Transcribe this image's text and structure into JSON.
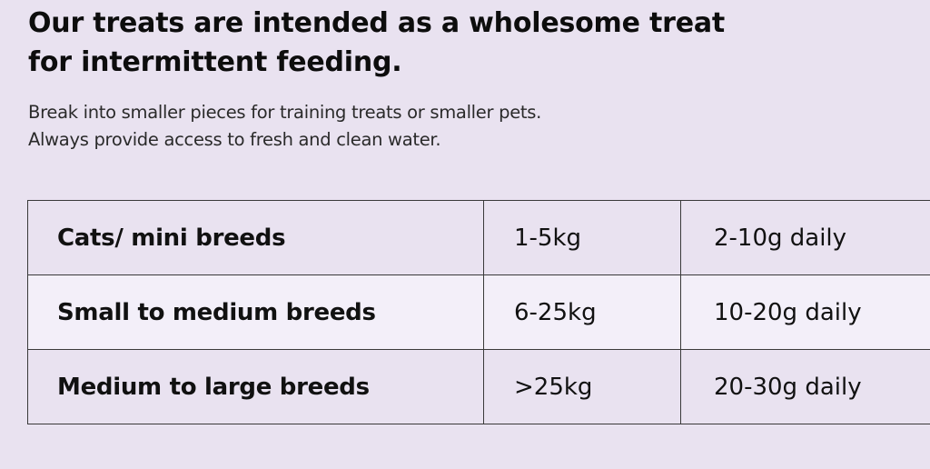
{
  "heading": {
    "line1": "Our treats are intended as a wholesome treat",
    "line2": "for intermittent feeding."
  },
  "subtitle": {
    "line1": "Break into smaller pieces for training treats or smaller pets.",
    "line2": "Always provide access to fresh and clean water."
  },
  "feeding_table": {
    "rows": [
      {
        "breed": "Cats/ mini breeds",
        "weight": "1-5kg",
        "amount": "2-10g daily"
      },
      {
        "breed": "Small to medium breeds",
        "weight": "6-25kg",
        "amount": "10-20g daily"
      },
      {
        "breed": "Medium to large breeds",
        "weight": ">25kg",
        "amount": "20-30g daily"
      }
    ]
  },
  "colors": {
    "background": "#e9e2f0",
    "alt_row": "#f3eff9",
    "border": "#3a3a3a",
    "text": "#111111"
  }
}
